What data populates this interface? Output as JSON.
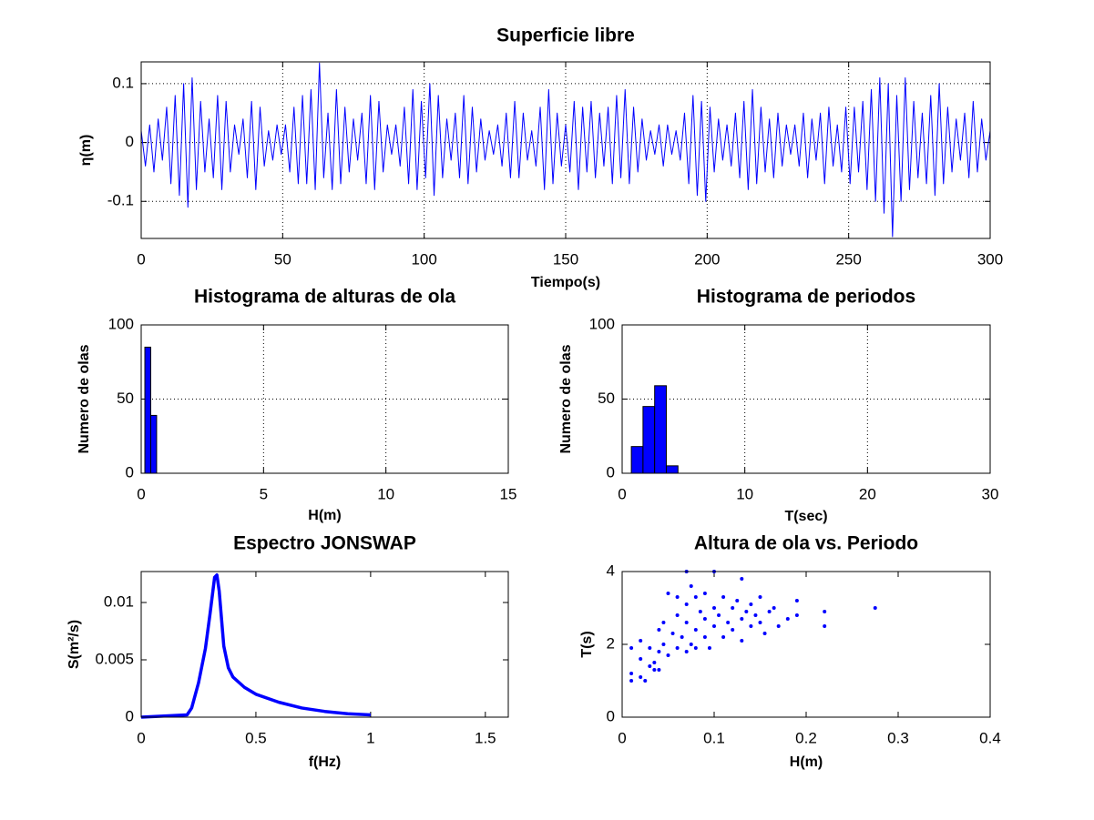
{
  "chart_data": [
    {
      "type": "line",
      "title": "Superficie libre",
      "x_label": "Tiempo(s)",
      "y_label": "η(m)",
      "color": "#0000ff",
      "grid": true,
      "xlim": [
        0,
        300
      ],
      "ylim": [
        -0.163,
        0.137
      ],
      "xticks": [
        0,
        50,
        100,
        150,
        200,
        250,
        300
      ],
      "yticks": [
        -0.1,
        0,
        0.1
      ],
      "x": [
        0,
        1.5,
        3,
        4.5,
        6,
        7.5,
        9,
        10.5,
        12,
        13.5,
        15,
        16.5,
        18,
        19.5,
        21,
        22.5,
        24,
        25.5,
        27,
        28.5,
        30,
        31.5,
        33,
        34.5,
        36,
        37.5,
        39,
        40.5,
        42,
        43.5,
        45,
        46.5,
        48,
        49.5,
        51,
        52.5,
        54,
        55.5,
        57,
        58.5,
        60,
        61.5,
        63,
        64.5,
        66,
        67.5,
        69,
        70.5,
        72,
        73.5,
        75,
        76.5,
        78,
        79.5,
        81,
        82.5,
        84,
        85.5,
        87,
        88.5,
        90,
        91.5,
        93,
        94.5,
        96,
        97.5,
        99,
        100.5,
        102,
        103.5,
        105,
        106.5,
        108,
        109.5,
        111,
        112.5,
        114,
        115.5,
        117,
        118.5,
        120,
        121.5,
        123,
        124.5,
        126,
        127.5,
        129,
        130.5,
        132,
        133.5,
        135,
        136.5,
        138,
        139.5,
        141,
        142.5,
        144,
        145.5,
        147,
        148.5,
        150,
        151.5,
        153,
        154.5,
        156,
        157.5,
        159,
        160.5,
        162,
        163.5,
        165,
        166.5,
        168,
        169.5,
        171,
        172.5,
        174,
        175.5,
        177,
        178.5,
        180,
        181.5,
        183,
        184.5,
        186,
        187.5,
        189,
        190.5,
        192,
        193.5,
        195,
        196.5,
        198,
        199.5,
        201,
        202.5,
        204,
        205.5,
        207,
        208.5,
        210,
        211.5,
        213,
        214.5,
        216,
        217.5,
        219,
        220.5,
        222,
        223.5,
        225,
        226.5,
        228,
        229.5,
        231,
        232.5,
        234,
        235.5,
        237,
        238.5,
        240,
        241.5,
        243,
        244.5,
        246,
        247.5,
        249,
        250.5,
        252,
        253.5,
        255,
        256.5,
        258,
        259.5,
        261,
        262.5,
        264,
        265.5,
        267,
        268.5,
        270,
        271.5,
        273,
        274.5,
        276,
        277.5,
        279,
        280.5,
        282,
        283.5,
        285,
        286.5,
        288,
        289.5,
        291,
        292.5,
        294,
        295.5,
        297,
        298.5,
        300
      ],
      "values": [
        0.02,
        -0.04,
        0.03,
        -0.05,
        0.04,
        -0.03,
        0.06,
        -0.07,
        0.08,
        -0.09,
        0.1,
        -0.11,
        0.11,
        -0.08,
        0.07,
        -0.05,
        0.04,
        -0.06,
        0.08,
        -0.08,
        0.07,
        -0.05,
        0.03,
        -0.02,
        0.04,
        -0.06,
        0.07,
        -0.08,
        0.06,
        -0.04,
        0.02,
        -0.03,
        0.03,
        -0.02,
        0.03,
        -0.05,
        0.06,
        -0.07,
        0.08,
        -0.07,
        0.09,
        -0.08,
        0.135,
        -0.06,
        0.05,
        -0.08,
        0.09,
        -0.07,
        0.06,
        -0.05,
        0.04,
        -0.03,
        0.05,
        -0.07,
        0.08,
        -0.08,
        0.07,
        -0.05,
        0.03,
        -0.02,
        0.03,
        -0.04,
        0.06,
        -0.07,
        0.09,
        -0.08,
        0.07,
        -0.06,
        0.1,
        -0.09,
        0.08,
        -0.06,
        0.04,
        -0.03,
        0.05,
        -0.06,
        0.08,
        -0.07,
        0.06,
        -0.05,
        0.04,
        -0.03,
        0.02,
        -0.02,
        0.03,
        -0.04,
        0.05,
        -0.06,
        0.07,
        -0.06,
        0.05,
        -0.03,
        0.02,
        -0.04,
        0.06,
        -0.08,
        0.09,
        -0.07,
        0.05,
        -0.04,
        0.03,
        -0.05,
        0.07,
        -0.08,
        0.06,
        -0.05,
        0.07,
        -0.06,
        0.05,
        -0.04,
        0.06,
        -0.07,
        0.08,
        -0.06,
        0.09,
        -0.07,
        0.06,
        -0.05,
        0.04,
        -0.03,
        0.02,
        -0.02,
        0.03,
        -0.04,
        0.03,
        -0.02,
        0.02,
        -0.03,
        0.05,
        -0.07,
        0.08,
        -0.09,
        0.07,
        -0.1,
        0.06,
        -0.05,
        0.04,
        -0.03,
        0.03,
        -0.04,
        0.05,
        -0.06,
        0.07,
        -0.08,
        0.09,
        -0.07,
        0.06,
        -0.05,
        0.04,
        -0.06,
        0.05,
        -0.04,
        0.03,
        -0.02,
        0.03,
        -0.04,
        0.05,
        -0.06,
        0.04,
        -0.03,
        0.05,
        -0.07,
        0.06,
        -0.04,
        0.03,
        -0.05,
        0.06,
        -0.07,
        0.06,
        -0.05,
        0.07,
        -0.08,
        0.09,
        -0.1,
        0.11,
        -0.12,
        0.1,
        -0.16,
        0.08,
        -0.1,
        0.11,
        -0.08,
        0.07,
        -0.06,
        0.05,
        -0.07,
        0.08,
        -0.09,
        0.1,
        -0.07,
        0.06,
        -0.05,
        0.04,
        -0.03,
        0.05,
        -0.06,
        0.07,
        -0.05,
        0.04,
        -0.03,
        0.02
      ]
    },
    {
      "type": "histogram",
      "title": "Histograma de alturas de ola",
      "x_label": "H(m)",
      "y_label": "Numero de olas",
      "color": "#0000ff",
      "grid": true,
      "xlim": [
        0,
        15
      ],
      "ylim": [
        0,
        100
      ],
      "xticks": [
        0,
        5,
        10,
        15
      ],
      "yticks": [
        0,
        50,
        100
      ],
      "bins": [
        0.15,
        0.39,
        0.63
      ],
      "values": [
        85,
        39
      ]
    },
    {
      "type": "histogram",
      "title": "Histograma de periodos",
      "x_label": "T(sec)",
      "y_label": "Numero de olas",
      "color": "#0000ff",
      "grid": true,
      "xlim": [
        0,
        30
      ],
      "ylim": [
        0,
        100
      ],
      "xticks": [
        0,
        10,
        20,
        30
      ],
      "yticks": [
        0,
        50,
        100
      ],
      "bins": [
        0.75,
        1.7,
        2.65,
        3.6,
        4.55
      ],
      "values": [
        18,
        45,
        59,
        5
      ]
    },
    {
      "type": "line",
      "title": "Espectro JONSWAP",
      "x_label": "f(Hz)",
      "y_label": "S(m²/s)",
      "color": "#0000ff",
      "grid": false,
      "line_width": 3.5,
      "xlim": [
        0,
        1.6
      ],
      "ylim": [
        0,
        0.0127
      ],
      "xticks": [
        0,
        0.5,
        1,
        1.5
      ],
      "yticks": [
        0,
        0.005,
        0.01
      ],
      "x": [
        0,
        0.1,
        0.2,
        0.22,
        0.25,
        0.28,
        0.3,
        0.32,
        0.33,
        0.34,
        0.36,
        0.38,
        0.4,
        0.45,
        0.5,
        0.6,
        0.7,
        0.8,
        0.9,
        1.0
      ],
      "values": [
        0,
        0.0001,
        0.0002,
        0.0008,
        0.003,
        0.006,
        0.009,
        0.0122,
        0.0124,
        0.011,
        0.0062,
        0.0043,
        0.0035,
        0.0026,
        0.002,
        0.0013,
        0.0008,
        0.0005,
        0.0003,
        0.0002
      ]
    },
    {
      "type": "scatter",
      "title": "Altura de ola vs. Periodo",
      "x_label": "H(m)",
      "y_label": "T(s)",
      "color": "#0000ff",
      "grid": false,
      "xlim": [
        0,
        0.4
      ],
      "ylim": [
        0,
        4
      ],
      "xticks": [
        0,
        0.1,
        0.2,
        0.3,
        0.4
      ],
      "yticks": [
        0,
        2,
        4
      ],
      "x": [
        0.01,
        0.01,
        0.01,
        0.02,
        0.02,
        0.02,
        0.025,
        0.03,
        0.03,
        0.035,
        0.035,
        0.04,
        0.04,
        0.04,
        0.045,
        0.045,
        0.05,
        0.05,
        0.055,
        0.06,
        0.06,
        0.06,
        0.065,
        0.07,
        0.07,
        0.07,
        0.07,
        0.075,
        0.075,
        0.08,
        0.08,
        0.08,
        0.085,
        0.09,
        0.09,
        0.09,
        0.095,
        0.1,
        0.1,
        0.1,
        0.105,
        0.11,
        0.11,
        0.115,
        0.12,
        0.12,
        0.125,
        0.13,
        0.13,
        0.13,
        0.135,
        0.14,
        0.14,
        0.145,
        0.15,
        0.15,
        0.155,
        0.16,
        0.165,
        0.17,
        0.18,
        0.19,
        0.19,
        0.22,
        0.22,
        0.275
      ],
      "values": [
        1.0,
        1.2,
        1.9,
        1.1,
        1.6,
        2.1,
        1.0,
        1.4,
        1.9,
        1.3,
        1.5,
        1.3,
        1.8,
        2.4,
        2.0,
        2.6,
        3.4,
        1.7,
        2.3,
        3.3,
        1.9,
        2.8,
        2.2,
        1.8,
        2.6,
        3.1,
        4.0,
        2.0,
        3.6,
        1.9,
        2.4,
        3.3,
        2.9,
        2.2,
        3.4,
        2.7,
        1.9,
        2.5,
        3.0,
        4.0,
        2.8,
        2.2,
        3.3,
        2.6,
        3.0,
        2.4,
        3.2,
        2.7,
        3.8,
        2.1,
        2.9,
        2.5,
        3.1,
        2.8,
        3.3,
        2.6,
        2.3,
        2.9,
        3.0,
        2.5,
        2.7,
        3.2,
        2.8,
        2.5,
        2.9,
        3.0
      ]
    }
  ]
}
